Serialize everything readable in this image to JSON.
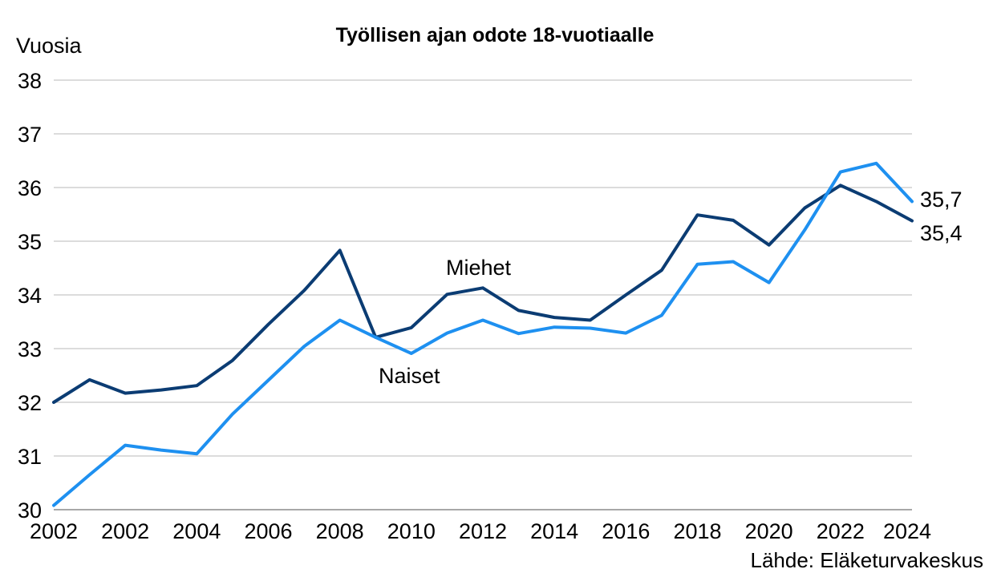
{
  "chart_data": {
    "type": "line",
    "title": "Työllisen ajan odote 18-vuotiaalle",
    "ylabel": "Vuosia",
    "xlabel": "",
    "ylim": [
      30,
      38
    ],
    "yticks": [
      "30",
      "31",
      "32",
      "33",
      "34",
      "35",
      "36",
      "37",
      "38"
    ],
    "xticks": [
      "2002",
      "2002",
      "2004",
      "2006",
      "2008",
      "2010",
      "2012",
      "2014",
      "2016",
      "2018",
      "2020",
      "2022",
      "2024"
    ],
    "x": [
      2001,
      2002,
      2003,
      2004,
      2005,
      2006,
      2007,
      2008,
      2009,
      2010,
      2011,
      2012,
      2013,
      2014,
      2015,
      2016,
      2017,
      2018,
      2019,
      2020,
      2021,
      2022,
      2023,
      2024,
      2025
    ],
    "grid": true,
    "series": [
      {
        "name": "Miehet",
        "color": "#0b3c73",
        "values": [
          32.0,
          32.42,
          32.17,
          32.23,
          32.31,
          32.78,
          33.45,
          34.08,
          34.83,
          33.21,
          33.39,
          34.01,
          34.13,
          33.71,
          33.58,
          33.53,
          34.0,
          34.46,
          35.49,
          35.39,
          34.93,
          35.62,
          36.04,
          35.74,
          35.38
        ],
        "end_label": "35,4"
      },
      {
        "name": "Naiset",
        "color": "#1e90f0",
        "values": [
          30.08,
          30.65,
          31.2,
          31.11,
          31.04,
          31.78,
          32.41,
          33.04,
          33.53,
          33.21,
          32.91,
          33.29,
          33.53,
          33.28,
          33.4,
          33.38,
          33.29,
          33.62,
          34.57,
          34.62,
          34.23,
          35.21,
          36.29,
          36.45,
          35.74
        ],
        "end_label": "35,7"
      }
    ],
    "source": "Lähde: Eläketurvakeskus"
  }
}
